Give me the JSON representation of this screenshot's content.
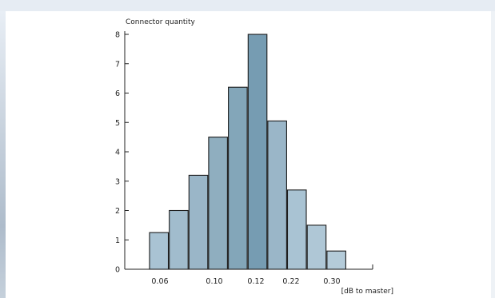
{
  "chart_data": {
    "type": "bar",
    "title": "",
    "ylabel": "Connector quantity",
    "xlabel": "[dB to master]",
    "ylim": [
      0,
      8
    ],
    "yticks": [
      0,
      1,
      2,
      3,
      4,
      5,
      6,
      7,
      8
    ],
    "xtick_labels": [
      "0.06",
      "0.10",
      "0.12",
      "0.22",
      "0.30"
    ],
    "values": [
      1.25,
      2.0,
      3.2,
      4.5,
      6.2,
      8.0,
      5.05,
      2.7,
      1.5,
      0.62
    ],
    "bar_colors": [
      "#a9c3d3",
      "#a1bccd",
      "#9ab6c8",
      "#8faebf",
      "#83a6b9",
      "#769cb2",
      "#9ab6c8",
      "#a9c3d3",
      "#afc7d6",
      "#b4cbd9"
    ],
    "grid": false,
    "legend": "none"
  }
}
